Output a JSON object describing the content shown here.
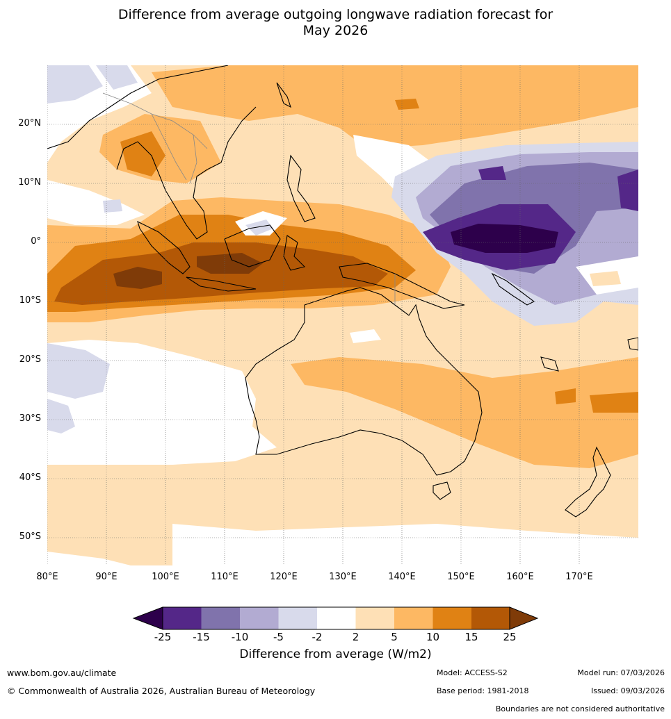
{
  "title_line1": "Difference from average outgoing longwave radiation forecast for",
  "title_line2": "May 2026",
  "lat_labels": [
    "20°N",
    "10°N",
    "0°",
    "10°S",
    "20°S",
    "30°S",
    "40°S",
    "50°S"
  ],
  "lon_labels": [
    "80°E",
    "90°E",
    "100°E",
    "110°E",
    "120°E",
    "130°E",
    "140°E",
    "150°E",
    "160°E",
    "170°E"
  ],
  "colorbar": {
    "ticks": [
      "-25",
      "-15",
      "-10",
      "-5",
      "-2",
      "2",
      "5",
      "10",
      "15",
      "25"
    ],
    "colors": [
      "#2d004b",
      "#542788",
      "#8073ac",
      "#b2abd2",
      "#d8daeb",
      "#ffffff",
      "#fee0b6",
      "#fdb863",
      "#e08214",
      "#b35806",
      "#7f3b08"
    ],
    "title": "Difference from average (W/m2)"
  },
  "footer": {
    "url": "www.bom.gov.au/climate",
    "copyright": "© Commonwealth of Australia 2026, Australian Bureau of Meteorology",
    "model": "Model: ACCESS-S2",
    "base_period": "Base period: 1981-2018",
    "model_run": "Model run: 07/03/2026",
    "issued": "Issued: 09/03/2026",
    "disclaimer": "Boundaries are not considered authoritative"
  }
}
